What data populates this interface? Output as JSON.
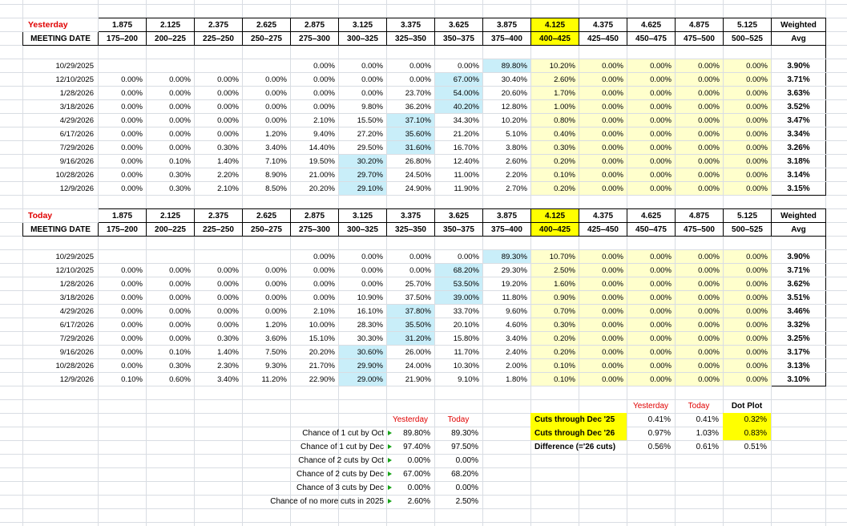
{
  "colors": {
    "grid": "#d9dde3",
    "red": "#e00000",
    "cyan": "#c9eef9",
    "pale_yellow": "#ffffcc",
    "yellow": "#ffff00",
    "green_marker": "#18a418"
  },
  "columns": {
    "meeting_date_label": "MEETING DATE",
    "weighted_label": "Weighted",
    "avg_label": "Avg",
    "highlighted_column_index": 9,
    "yellow_zone_start_index": 9,
    "rate_levels": [
      "1.875",
      "2.125",
      "2.375",
      "2.625",
      "2.875",
      "3.125",
      "3.375",
      "3.625",
      "3.875",
      "4.125",
      "4.375",
      "4.625",
      "4.875",
      "5.125"
    ],
    "rate_ranges": [
      "175–200",
      "200–225",
      "225–250",
      "250–275",
      "275–300",
      "300–325",
      "325–350",
      "350–375",
      "375–400",
      "400–425",
      "425–450",
      "450–475",
      "475–500",
      "500–525"
    ]
  },
  "tables": [
    {
      "title": "Yesterday",
      "rows": [
        {
          "date": "10/29/2025",
          "values": [
            "",
            "",
            "",
            "",
            "0.00%",
            "0.00%",
            "0.00%",
            "0.00%",
            "89.80%",
            "10.20%",
            "0.00%",
            "0.00%",
            "0.00%",
            "0.00%"
          ],
          "highlight_index": 8,
          "avg": "3.90%"
        },
        {
          "date": "12/10/2025",
          "values": [
            "0.00%",
            "0.00%",
            "0.00%",
            "0.00%",
            "0.00%",
            "0.00%",
            "0.00%",
            "67.00%",
            "30.40%",
            "2.60%",
            "0.00%",
            "0.00%",
            "0.00%",
            "0.00%"
          ],
          "highlight_index": 7,
          "avg": "3.71%"
        },
        {
          "date": "1/28/2026",
          "values": [
            "0.00%",
            "0.00%",
            "0.00%",
            "0.00%",
            "0.00%",
            "0.00%",
            "23.70%",
            "54.00%",
            "20.60%",
            "1.70%",
            "0.00%",
            "0.00%",
            "0.00%",
            "0.00%"
          ],
          "highlight_index": 7,
          "avg": "3.63%"
        },
        {
          "date": "3/18/2026",
          "values": [
            "0.00%",
            "0.00%",
            "0.00%",
            "0.00%",
            "0.00%",
            "9.80%",
            "36.20%",
            "40.20%",
            "12.80%",
            "1.00%",
            "0.00%",
            "0.00%",
            "0.00%",
            "0.00%"
          ],
          "highlight_index": 7,
          "avg": "3.52%"
        },
        {
          "date": "4/29/2026",
          "values": [
            "0.00%",
            "0.00%",
            "0.00%",
            "0.00%",
            "2.10%",
            "15.50%",
            "37.10%",
            "34.30%",
            "10.20%",
            "0.80%",
            "0.00%",
            "0.00%",
            "0.00%",
            "0.00%"
          ],
          "highlight_index": 6,
          "avg": "3.47%"
        },
        {
          "date": "6/17/2026",
          "values": [
            "0.00%",
            "0.00%",
            "0.00%",
            "1.20%",
            "9.40%",
            "27.20%",
            "35.60%",
            "21.20%",
            "5.10%",
            "0.40%",
            "0.00%",
            "0.00%",
            "0.00%",
            "0.00%"
          ],
          "highlight_index": 6,
          "avg": "3.34%"
        },
        {
          "date": "7/29/2026",
          "values": [
            "0.00%",
            "0.00%",
            "0.30%",
            "3.40%",
            "14.40%",
            "29.50%",
            "31.60%",
            "16.70%",
            "3.80%",
            "0.30%",
            "0.00%",
            "0.00%",
            "0.00%",
            "0.00%"
          ],
          "highlight_index": 6,
          "avg": "3.26%"
        },
        {
          "date": "9/16/2026",
          "values": [
            "0.00%",
            "0.10%",
            "1.40%",
            "7.10%",
            "19.50%",
            "30.20%",
            "26.80%",
            "12.40%",
            "2.60%",
            "0.20%",
            "0.00%",
            "0.00%",
            "0.00%",
            "0.00%"
          ],
          "highlight_index": 5,
          "avg": "3.18%"
        },
        {
          "date": "10/28/2026",
          "values": [
            "0.00%",
            "0.30%",
            "2.20%",
            "8.90%",
            "21.00%",
            "29.70%",
            "24.50%",
            "11.00%",
            "2.20%",
            "0.10%",
            "0.00%",
            "0.00%",
            "0.00%",
            "0.00%"
          ],
          "highlight_index": 5,
          "avg": "3.14%"
        },
        {
          "date": "12/9/2026",
          "values": [
            "0.00%",
            "0.30%",
            "2.10%",
            "8.50%",
            "20.20%",
            "29.10%",
            "24.90%",
            "11.90%",
            "2.70%",
            "0.20%",
            "0.00%",
            "0.00%",
            "0.00%",
            "0.00%"
          ],
          "highlight_index": 5,
          "avg": "3.15%"
        }
      ]
    },
    {
      "title": "Today",
      "rows": [
        {
          "date": "10/29/2025",
          "values": [
            "",
            "",
            "",
            "",
            "0.00%",
            "0.00%",
            "0.00%",
            "0.00%",
            "89.30%",
            "10.70%",
            "0.00%",
            "0.00%",
            "0.00%",
            "0.00%"
          ],
          "highlight_index": 8,
          "avg": "3.90%"
        },
        {
          "date": "12/10/2025",
          "values": [
            "0.00%",
            "0.00%",
            "0.00%",
            "0.00%",
            "0.00%",
            "0.00%",
            "0.00%",
            "68.20%",
            "29.30%",
            "2.50%",
            "0.00%",
            "0.00%",
            "0.00%",
            "0.00%"
          ],
          "highlight_index": 7,
          "avg": "3.71%"
        },
        {
          "date": "1/28/2026",
          "values": [
            "0.00%",
            "0.00%",
            "0.00%",
            "0.00%",
            "0.00%",
            "0.00%",
            "25.70%",
            "53.50%",
            "19.20%",
            "1.60%",
            "0.00%",
            "0.00%",
            "0.00%",
            "0.00%"
          ],
          "highlight_index": 7,
          "avg": "3.62%"
        },
        {
          "date": "3/18/2026",
          "values": [
            "0.00%",
            "0.00%",
            "0.00%",
            "0.00%",
            "0.00%",
            "10.90%",
            "37.50%",
            "39.00%",
            "11.80%",
            "0.90%",
            "0.00%",
            "0.00%",
            "0.00%",
            "0.00%"
          ],
          "highlight_index": 7,
          "avg": "3.51%"
        },
        {
          "date": "4/29/2026",
          "values": [
            "0.00%",
            "0.00%",
            "0.00%",
            "0.00%",
            "2.10%",
            "16.10%",
            "37.80%",
            "33.70%",
            "9.60%",
            "0.70%",
            "0.00%",
            "0.00%",
            "0.00%",
            "0.00%"
          ],
          "highlight_index": 6,
          "avg": "3.46%"
        },
        {
          "date": "6/17/2026",
          "values": [
            "0.00%",
            "0.00%",
            "0.00%",
            "1.20%",
            "10.00%",
            "28.30%",
            "35.50%",
            "20.10%",
            "4.60%",
            "0.30%",
            "0.00%",
            "0.00%",
            "0.00%",
            "0.00%"
          ],
          "highlight_index": 6,
          "avg": "3.32%"
        },
        {
          "date": "7/29/2026",
          "values": [
            "0.00%",
            "0.00%",
            "0.30%",
            "3.60%",
            "15.10%",
            "30.30%",
            "31.20%",
            "15.80%",
            "3.40%",
            "0.20%",
            "0.00%",
            "0.00%",
            "0.00%",
            "0.00%"
          ],
          "highlight_index": 6,
          "avg": "3.25%"
        },
        {
          "date": "9/16/2026",
          "values": [
            "0.00%",
            "0.10%",
            "1.40%",
            "7.50%",
            "20.20%",
            "30.60%",
            "26.00%",
            "11.70%",
            "2.40%",
            "0.20%",
            "0.00%",
            "0.00%",
            "0.00%",
            "0.00%"
          ],
          "highlight_index": 5,
          "avg": "3.17%"
        },
        {
          "date": "10/28/2026",
          "values": [
            "0.00%",
            "0.30%",
            "2.30%",
            "9.30%",
            "21.70%",
            "29.90%",
            "24.00%",
            "10.30%",
            "2.00%",
            "0.10%",
            "0.00%",
            "0.00%",
            "0.00%",
            "0.00%"
          ],
          "highlight_index": 5,
          "avg": "3.13%"
        },
        {
          "date": "12/9/2026",
          "values": [
            "0.10%",
            "0.60%",
            "3.40%",
            "11.20%",
            "22.90%",
            "29.00%",
            "21.90%",
            "9.10%",
            "1.80%",
            "0.10%",
            "0.00%",
            "0.00%",
            "0.00%",
            "0.00%"
          ],
          "highlight_index": 5,
          "avg": "3.10%"
        }
      ]
    }
  ],
  "summary_left": {
    "headers": [
      "Yesterday",
      "Today"
    ],
    "rows": [
      {
        "label": "Chance of 1 cut by Oct",
        "values": [
          "89.80%",
          "89.30%"
        ]
      },
      {
        "label": "Chance of 1 cut by Dec",
        "values": [
          "97.40%",
          "97.50%"
        ]
      },
      {
        "label": "Chance of 2 cuts by Oct",
        "values": [
          "0.00%",
          "0.00%"
        ]
      },
      {
        "label": "Chance of 2 cuts by Dec",
        "values": [
          "67.00%",
          "68.20%"
        ]
      },
      {
        "label": "Chance of 3 cuts by Dec",
        "values": [
          "0.00%",
          "0.00%"
        ]
      },
      {
        "label": "Chance of no more cuts in 2025",
        "values": [
          "2.60%",
          "2.50%"
        ]
      }
    ]
  },
  "summary_right": {
    "headers": [
      "Yesterday",
      "Today",
      "Dot Plot"
    ],
    "rows": [
      {
        "label": "Cuts through Dec '25",
        "values": [
          "0.41%",
          "0.41%",
          "0.32%"
        ],
        "highlighted": true
      },
      {
        "label": "Cuts through Dec '26",
        "values": [
          "0.97%",
          "1.03%",
          "0.83%"
        ],
        "highlighted": true
      },
      {
        "label": "Difference (='26 cuts)",
        "values": [
          "0.56%",
          "0.61%",
          "0.51%"
        ],
        "highlighted": false
      }
    ]
  }
}
